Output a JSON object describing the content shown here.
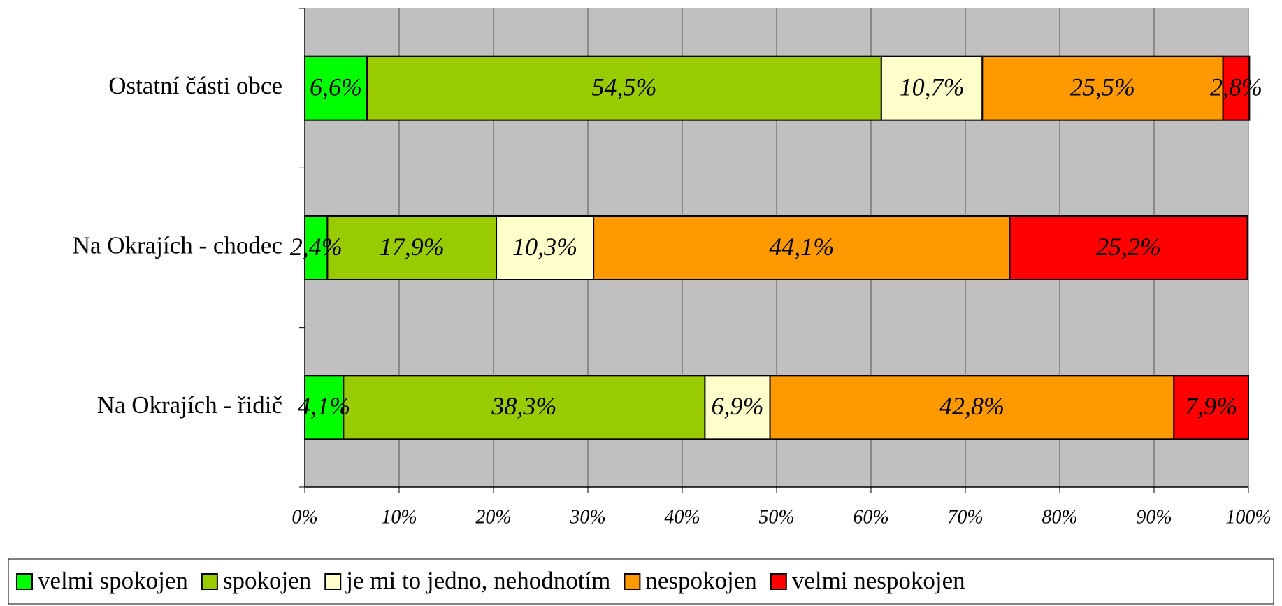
{
  "chart_data": {
    "type": "stacked_bar_horizontal",
    "categories": [
      "Ostatní části obce",
      "Na Okrajích - chodec",
      "Na Okrajích - řidič"
    ],
    "series": [
      {
        "name": "velmi spokojen",
        "color": "#00ff00",
        "values": [
          6.6,
          2.4,
          4.1
        ],
        "value_labels": [
          "6,6%",
          "2,4%",
          "4,1%"
        ]
      },
      {
        "name": "spokojen",
        "color": "#99cc00",
        "values": [
          54.5,
          17.9,
          38.3
        ],
        "value_labels": [
          "54,5%",
          "17,9%",
          "38,3%"
        ]
      },
      {
        "name": "je mi to jedno, nehodnotím",
        "color": "#ffffcc",
        "values": [
          10.7,
          10.3,
          6.9
        ],
        "value_labels": [
          "10,7%",
          "10,3%",
          "6,9%"
        ]
      },
      {
        "name": "nespokojen",
        "color": "#ff9900",
        "values": [
          25.5,
          44.1,
          42.8
        ],
        "value_labels": [
          "25,5%",
          "44,1%",
          "42,8%"
        ]
      },
      {
        "name": "velmi nespokojen",
        "color": "#ff0000",
        "values": [
          2.8,
          25.2,
          7.9
        ],
        "value_labels": [
          "2,8%",
          "25,2%",
          "7,9%"
        ]
      }
    ],
    "xlim": [
      0,
      100
    ],
    "xticks": [
      {
        "value": 0,
        "label": "0%"
      },
      {
        "value": 10,
        "label": "10%"
      },
      {
        "value": 20,
        "label": "20%"
      },
      {
        "value": 30,
        "label": "30%"
      },
      {
        "value": 40,
        "label": "40%"
      },
      {
        "value": 50,
        "label": "50%"
      },
      {
        "value": 60,
        "label": "60%"
      },
      {
        "value": 70,
        "label": "70%"
      },
      {
        "value": 80,
        "label": "80%"
      },
      {
        "value": 90,
        "label": "90%"
      },
      {
        "value": 100,
        "label": "100%"
      }
    ],
    "grid": true,
    "legend": "bottom",
    "plot_background": "#c0c0c0"
  }
}
